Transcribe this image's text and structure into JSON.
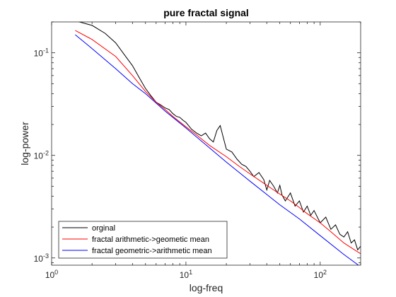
{
  "chart_data": {
    "type": "line",
    "title": "pure fractal signal",
    "xlabel": "log-freq",
    "ylabel": "log-power",
    "xscale": "log",
    "yscale": "log",
    "xlim": [
      1,
      200
    ],
    "ylim": [
      0.00085,
      0.2
    ],
    "grid": false,
    "legend_position": "bottom-left",
    "x_ticks": [
      {
        "base": "10",
        "exp": "0"
      },
      {
        "base": "10",
        "exp": "1"
      },
      {
        "base": "10",
        "exp": "2"
      }
    ],
    "y_ticks": [
      {
        "base": "10",
        "exp": "-3",
        "value": 0.001
      },
      {
        "base": "10",
        "exp": "-2",
        "value": 0.01
      },
      {
        "base": "10",
        "exp": "-1",
        "value": 0.1
      }
    ],
    "series": [
      {
        "name": "orginal",
        "color": "#000000",
        "x": [
          1.5,
          2,
          2.5,
          3,
          3.5,
          4,
          4.5,
          5,
          5.5,
          6,
          6.5,
          7,
          7.5,
          8,
          8.5,
          9,
          9.5,
          10,
          11,
          12,
          13,
          14,
          15,
          16,
          17,
          18,
          19,
          20,
          22,
          24,
          26,
          28,
          30,
          32,
          35,
          38,
          40,
          42,
          45,
          48,
          50,
          52,
          55,
          60,
          65,
          70,
          75,
          80,
          85,
          90,
          100,
          110,
          120,
          130,
          140,
          150,
          160,
          170,
          180,
          190,
          200
        ],
        "y": [
          0.205,
          0.185,
          0.155,
          0.125,
          0.095,
          0.075,
          0.057,
          0.045,
          0.038,
          0.033,
          0.031,
          0.029,
          0.028,
          0.0255,
          0.024,
          0.0235,
          0.022,
          0.021,
          0.018,
          0.0165,
          0.0155,
          0.0165,
          0.0145,
          0.0135,
          0.0175,
          0.0195,
          0.0148,
          0.0115,
          0.0108,
          0.0092,
          0.0082,
          0.0078,
          0.007,
          0.0062,
          0.0068,
          0.0058,
          0.0046,
          0.0057,
          0.005,
          0.0043,
          0.0051,
          0.0041,
          0.0036,
          0.0043,
          0.0032,
          0.0036,
          0.0028,
          0.0032,
          0.0026,
          0.0029,
          0.0022,
          0.0025,
          0.0019,
          0.0021,
          0.0017,
          0.0016,
          0.0018,
          0.0014,
          0.0015,
          0.0012,
          0.0013
        ]
      },
      {
        "name": "fractal arithmetic->geometic mean",
        "color": "#ff0000",
        "x": [
          1.5,
          2,
          3,
          4,
          5,
          6,
          7,
          8,
          10,
          12,
          15,
          20,
          25,
          30,
          40,
          50,
          60,
          70,
          80,
          100,
          120,
          150,
          180,
          200
        ],
        "y": [
          0.165,
          0.135,
          0.092,
          0.06,
          0.042,
          0.033,
          0.028,
          0.024,
          0.019,
          0.0158,
          0.0125,
          0.0097,
          0.0078,
          0.0066,
          0.0051,
          0.0042,
          0.0036,
          0.0031,
          0.0027,
          0.0022,
          0.0018,
          0.0014,
          0.0012,
          0.0011
        ]
      },
      {
        "name": "fractal geometric->arithmetic mean",
        "color": "#0000ff",
        "x": [
          1.5,
          2,
          3,
          4,
          5,
          7,
          10,
          15,
          20,
          30,
          50,
          70,
          100,
          150,
          200
        ],
        "y": [
          0.15,
          0.11,
          0.07,
          0.05,
          0.04,
          0.027,
          0.0185,
          0.0118,
          0.0086,
          0.0056,
          0.0033,
          0.0024,
          0.00165,
          0.00108,
          0.00082
        ]
      }
    ]
  }
}
